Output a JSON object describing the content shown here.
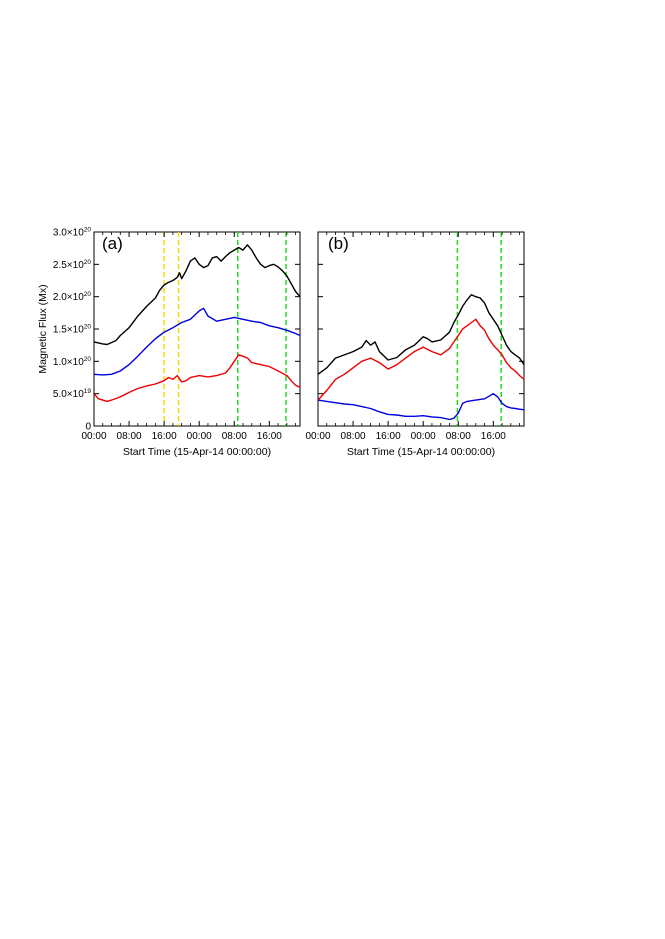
{
  "chart_data": [
    {
      "type": "line",
      "panel_label": "(a)",
      "xlabel": "Start Time (15-Apr-14 00:00:00)",
      "ylabel": "Magnetic Flux (Mx)",
      "x_unit": "hours since 15-Apr-14 00:00:00",
      "xlim": [
        0,
        47
      ],
      "ylim": [
        0,
        3e+20
      ],
      "x_tick_values": [
        0,
        8,
        16,
        24,
        32,
        40
      ],
      "x_tick_labels": [
        "00:00",
        "08:00",
        "16:00",
        "00:00",
        "08:00",
        "16:00"
      ],
      "y_ticks": [
        {
          "value": 0,
          "mantissa": "0",
          "exp": ""
        },
        {
          "value": 5e+19,
          "mantissa": "5.0×10",
          "exp": "19"
        },
        {
          "value": 1e+20,
          "mantissa": "1.0×10",
          "exp": "20"
        },
        {
          "value": 1.5e+20,
          "mantissa": "1.5×10",
          "exp": "20"
        },
        {
          "value": 2e+20,
          "mantissa": "2.0×10",
          "exp": "20"
        },
        {
          "value": 2.5e+20,
          "mantissa": "2.5×10",
          "exp": "20"
        },
        {
          "value": 3e+20,
          "mantissa": "3.0×10",
          "exp": "20"
        }
      ],
      "vlines": [
        {
          "x": 16,
          "color": "#ffd700"
        },
        {
          "x": 19.3,
          "color": "#ffd700"
        },
        {
          "x": 32.8,
          "color": "#22dd22"
        },
        {
          "x": 43.8,
          "color": "#22dd22"
        }
      ],
      "series": [
        {
          "color": "#000000",
          "x": [
            0,
            2,
            3,
            5,
            6,
            8,
            10,
            12,
            14,
            15,
            16,
            17,
            18,
            19,
            19.5,
            20,
            21,
            22,
            23,
            24,
            25,
            26,
            27,
            28,
            29,
            30,
            31,
            32,
            33,
            34,
            35,
            36,
            37,
            38,
            39,
            40,
            41,
            42,
            43,
            44,
            45,
            46,
            47
          ],
          "y": [
            1.3e+20,
            1.27e+20,
            1.26e+20,
            1.32e+20,
            1.4e+20,
            1.52e+20,
            1.7e+20,
            1.85e+20,
            1.98e+20,
            2.1e+20,
            2.18e+20,
            2.22e+20,
            2.25e+20,
            2.3e+20,
            2.37e+20,
            2.28e+20,
            2.4e+20,
            2.55e+20,
            2.6e+20,
            2.5e+20,
            2.45e+20,
            2.48e+20,
            2.6e+20,
            2.62e+20,
            2.55e+20,
            2.62e+20,
            2.68e+20,
            2.72e+20,
            2.76e+20,
            2.72e+20,
            2.8e+20,
            2.72e+20,
            2.6e+20,
            2.5e+20,
            2.45e+20,
            2.48e+20,
            2.5e+20,
            2.46e+20,
            2.4e+20,
            2.32e+20,
            2.2e+20,
            2.08e+20,
            2e+20
          ]
        },
        {
          "color": "#0000dd",
          "x": [
            0,
            2,
            4,
            6,
            8,
            10,
            12,
            14,
            16,
            18,
            20,
            22,
            24,
            25,
            26,
            28,
            30,
            32,
            34,
            36,
            38,
            40,
            42,
            44,
            46,
            47
          ],
          "y": [
            8e+19,
            7.9e+19,
            8e+19,
            8.5e+19,
            9.5e+19,
            1.08e+20,
            1.22e+20,
            1.35e+20,
            1.45e+20,
            1.52e+20,
            1.6e+20,
            1.65e+20,
            1.78e+20,
            1.82e+20,
            1.7e+20,
            1.62e+20,
            1.65e+20,
            1.68e+20,
            1.65e+20,
            1.62e+20,
            1.6e+20,
            1.55e+20,
            1.52e+20,
            1.48e+20,
            1.43e+20,
            1.4e+20
          ]
        },
        {
          "color": "#ee0000",
          "x": [
            0,
            1,
            2,
            3,
            4,
            6,
            8,
            10,
            12,
            14,
            16,
            17,
            18,
            19,
            20,
            21,
            22,
            24,
            26,
            28,
            30,
            31,
            32,
            33,
            34,
            35,
            36,
            38,
            40,
            42,
            44,
            45,
            46,
            47
          ],
          "y": [
            5e+19,
            4.2e+19,
            4e+19,
            3.8e+19,
            4e+19,
            4.5e+19,
            5.2e+19,
            5.8e+19,
            6.2e+19,
            6.5e+19,
            7e+19,
            7.5e+19,
            7.2e+19,
            7.8e+19,
            6.8e+19,
            7e+19,
            7.5e+19,
            7.8e+19,
            7.6e+19,
            7.8e+19,
            8.2e+19,
            9e+19,
            1e+20,
            1.1e+20,
            1.08e+20,
            1.05e+20,
            9.8e+19,
            9.5e+19,
            9.2e+19,
            8.5e+19,
            7.8e+19,
            7e+19,
            6.3e+19,
            6e+19
          ]
        }
      ]
    },
    {
      "type": "line",
      "panel_label": "(b)",
      "xlabel": "Start Time (15-Apr-14 00:00:00)",
      "ylabel": "",
      "x_unit": "hours since 15-Apr-14 00:00:00",
      "xlim": [
        0,
        47
      ],
      "ylim": [
        0,
        3e+20
      ],
      "x_tick_values": [
        0,
        8,
        16,
        24,
        32,
        40
      ],
      "x_tick_labels": [
        "00:00",
        "08:00",
        "16:00",
        "00:00",
        "08:00",
        "16:00"
      ],
      "vlines": [
        {
          "x": 31.8,
          "color": "#22dd22"
        },
        {
          "x": 41.8,
          "color": "#22dd22"
        }
      ],
      "series": [
        {
          "color": "#000000",
          "x": [
            0,
            2,
            4,
            6,
            8,
            10,
            11,
            12,
            13,
            14,
            16,
            18,
            20,
            22,
            24,
            25,
            26,
            28,
            30,
            31,
            32,
            33,
            34,
            35,
            36,
            37,
            38,
            39,
            40,
            41,
            42,
            43,
            44,
            45,
            46,
            47
          ],
          "y": [
            8e+19,
            9e+19,
            1.05e+20,
            1.1e+20,
            1.15e+20,
            1.22e+20,
            1.32e+20,
            1.25e+20,
            1.3e+20,
            1.15e+20,
            1.02e+20,
            1.06e+20,
            1.18e+20,
            1.25e+20,
            1.38e+20,
            1.35e+20,
            1.3e+20,
            1.33e+20,
            1.45e+20,
            1.6e+20,
            1.72e+20,
            1.85e+20,
            1.95e+20,
            2.03e+20,
            2e+20,
            1.98e+20,
            1.9e+20,
            1.75e+20,
            1.65e+20,
            1.55e+20,
            1.4e+20,
            1.25e+20,
            1.15e+20,
            1.1e+20,
            1.05e+20,
            9.5e+19
          ]
        },
        {
          "color": "#ee0000",
          "x": [
            0,
            2,
            4,
            6,
            8,
            10,
            12,
            14,
            16,
            18,
            20,
            22,
            24,
            26,
            28,
            30,
            31,
            32,
            33,
            34,
            35,
            36,
            37,
            38,
            39,
            40,
            41,
            42,
            43,
            44,
            45,
            46,
            47
          ],
          "y": [
            4e+19,
            5.5e+19,
            7.2e+19,
            8e+19,
            9e+19,
            1e+20,
            1.05e+20,
            9.8e+19,
            8.8e+19,
            9.5e+19,
            1.05e+20,
            1.15e+20,
            1.22e+20,
            1.15e+20,
            1.1e+20,
            1.2e+20,
            1.3e+20,
            1.4e+20,
            1.5e+20,
            1.55e+20,
            1.6e+20,
            1.65e+20,
            1.55e+20,
            1.48e+20,
            1.35e+20,
            1.25e+20,
            1.18e+20,
            1.1e+20,
            9.8e+19,
            9e+19,
            8.5e+19,
            7.8e+19,
            7.2e+19
          ]
        },
        {
          "color": "#0000dd",
          "x": [
            0,
            2,
            4,
            6,
            8,
            10,
            12,
            14,
            16,
            18,
            20,
            22,
            24,
            26,
            28,
            30,
            31,
            32,
            33,
            34,
            36,
            38,
            40,
            41,
            42,
            43,
            44,
            45,
            46,
            47
          ],
          "y": [
            4e+19,
            3.8e+19,
            3.6e+19,
            3.4e+19,
            3.3e+19,
            3e+19,
            2.7e+19,
            2.2e+19,
            1.8e+19,
            1.7e+19,
            1.5e+19,
            1.5e+19,
            1.6e+19,
            1.4e+19,
            1.3e+19,
            1e+19,
            1.2e+19,
            2e+19,
            3.5e+19,
            3.8e+19,
            4e+19,
            4.2e+19,
            5e+19,
            4.5e+19,
            3.5e+19,
            3e+19,
            2.8e+19,
            2.7e+19,
            2.6e+19,
            2.5e+19
          ]
        }
      ]
    }
  ]
}
